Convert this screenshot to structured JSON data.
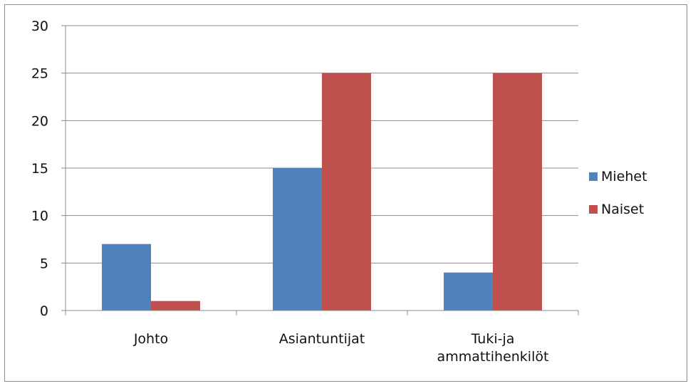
{
  "chart_data": {
    "type": "bar",
    "categories": [
      [
        "Johto"
      ],
      [
        "Asiantuntijat"
      ],
      [
        "Tuki-ja",
        "ammattihenkilöt"
      ]
    ],
    "series": [
      {
        "name": "Miehet",
        "values": [
          7,
          15,
          4
        ],
        "color": "#4f81bd"
      },
      {
        "name": "Naiset",
        "values": [
          1,
          25,
          25
        ],
        "color": "#c0504d"
      }
    ],
    "ylim": [
      0,
      30
    ],
    "yticks": [
      0,
      5,
      10,
      15,
      20,
      25,
      30
    ],
    "grid": true,
    "legend": "right",
    "title": "",
    "xlabel": "",
    "ylabel": ""
  }
}
